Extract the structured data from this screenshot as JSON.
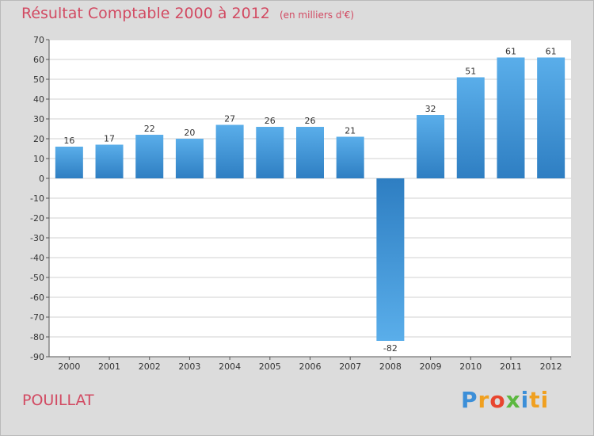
{
  "header": {
    "title": "Résultat Comptable 2000 à 2012",
    "subtitle": "(en milliers d'€)"
  },
  "footer": {
    "commune": "POUILLAT",
    "logo_letters": [
      "P",
      "r",
      "o",
      "x",
      "i",
      "ti"
    ]
  },
  "colors": {
    "title": "#d24a62",
    "bar_light": "#5aaeea",
    "bar_dark": "#2e7ec2",
    "plot_bg": "#ffffff",
    "frame_bg": "#dcdcdc",
    "grid": "#d0d0d0"
  },
  "chart_data": {
    "type": "bar",
    "title": "Résultat Comptable 2000 à 2012",
    "subtitle": "(en milliers d'€)",
    "xlabel": "",
    "ylabel": "",
    "categories": [
      "2000",
      "2001",
      "2002",
      "2003",
      "2004",
      "2005",
      "2006",
      "2007",
      "2008",
      "2009",
      "2010",
      "2011",
      "2012"
    ],
    "values": [
      16,
      17,
      22,
      20,
      27,
      26,
      26,
      21,
      -82,
      32,
      51,
      61,
      61
    ],
    "ylim": [
      -90,
      70
    ],
    "yticks": [
      70,
      60,
      50,
      40,
      30,
      20,
      10,
      0,
      -10,
      -20,
      -30,
      -40,
      -50,
      -60,
      -70,
      -80,
      -90
    ],
    "grid": true
  }
}
